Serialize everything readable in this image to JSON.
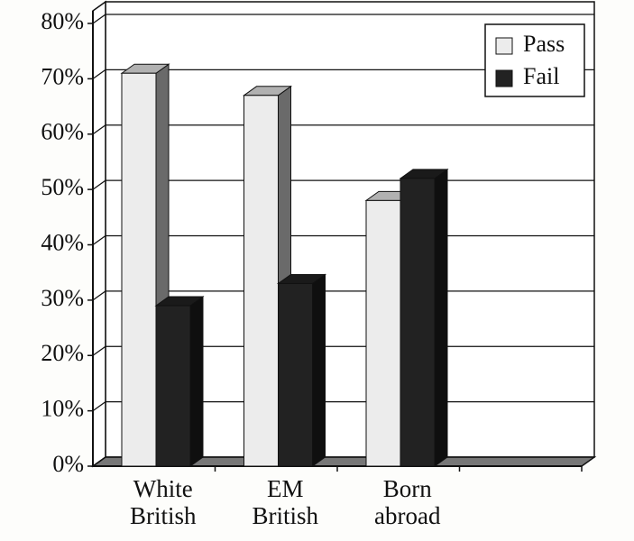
{
  "chart_data": {
    "type": "bar3d",
    "categories": [
      "White British",
      "EM British",
      "Born abroad",
      null
    ],
    "series": [
      {
        "name": "Pass",
        "color": "#ececec",
        "values": [
          71,
          67,
          48,
          null
        ]
      },
      {
        "name": "Fail",
        "color": "#222222",
        "values": [
          29,
          33,
          52,
          null
        ]
      }
    ],
    "ylim": [
      0,
      80
    ],
    "yticks": [
      {
        "value": 0,
        "label": "0%"
      },
      {
        "value": 10,
        "label": "10%"
      },
      {
        "value": 20,
        "label": "20%"
      },
      {
        "value": 30,
        "label": "30%"
      },
      {
        "value": 40,
        "label": "40%"
      },
      {
        "value": 50,
        "label": "50%"
      },
      {
        "value": 60,
        "label": "60%"
      },
      {
        "value": 70,
        "label": "70%"
      },
      {
        "value": 80,
        "label": "80%"
      }
    ],
    "grid": true,
    "legend": "top-right"
  }
}
